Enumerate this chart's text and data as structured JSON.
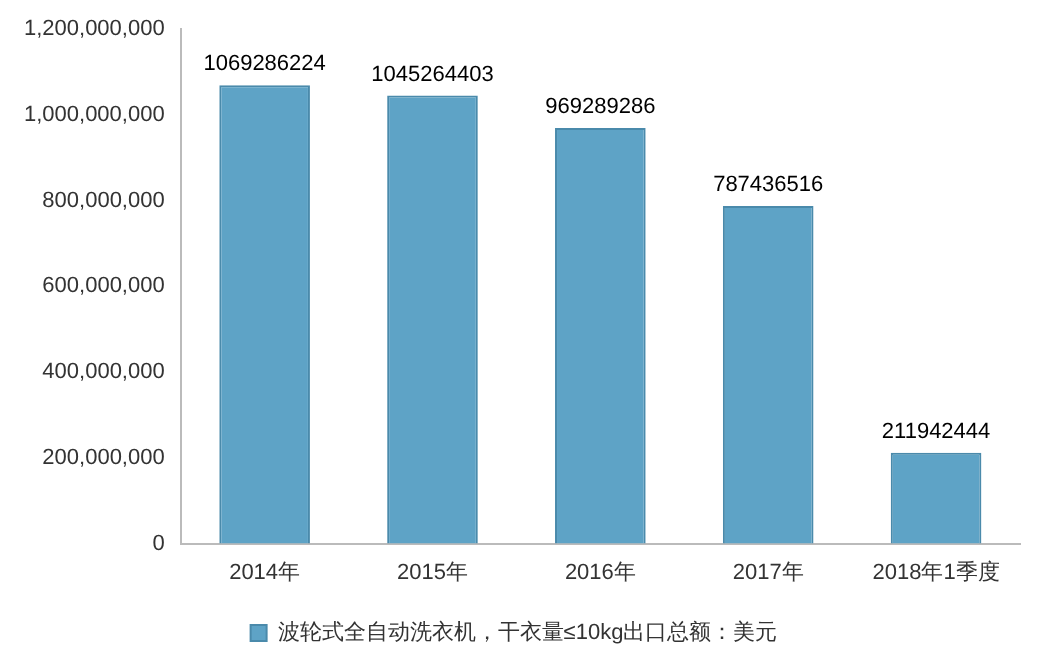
{
  "chart_data": {
    "type": "bar",
    "categories": [
      "2014年",
      "2015年",
      "2016年",
      "2017年",
      "2018年1季度"
    ],
    "series": [
      {
        "name": "波轮式全自动洗衣机，干衣量≤10kg出口总额：美元",
        "color": "#5ea3c6",
        "values": [
          1069286224,
          1045264403,
          969289286,
          787436516,
          211942444
        ]
      }
    ],
    "ylim": [
      0,
      1200000000
    ],
    "yticks": [
      {
        "value": 0,
        "label": "0"
      },
      {
        "value": 200000000,
        "label": "200,000,000"
      },
      {
        "value": 400000000,
        "label": "400,000,000"
      },
      {
        "value": 600000000,
        "label": "600,000,000"
      },
      {
        "value": 800000000,
        "label": "800,000,000"
      },
      {
        "value": 1000000000,
        "label": "1,000,000,000"
      },
      {
        "value": 1200000000,
        "label": "1,200,000,000"
      }
    ],
    "grid": false,
    "legend": "bottom",
    "data_labels": true
  }
}
